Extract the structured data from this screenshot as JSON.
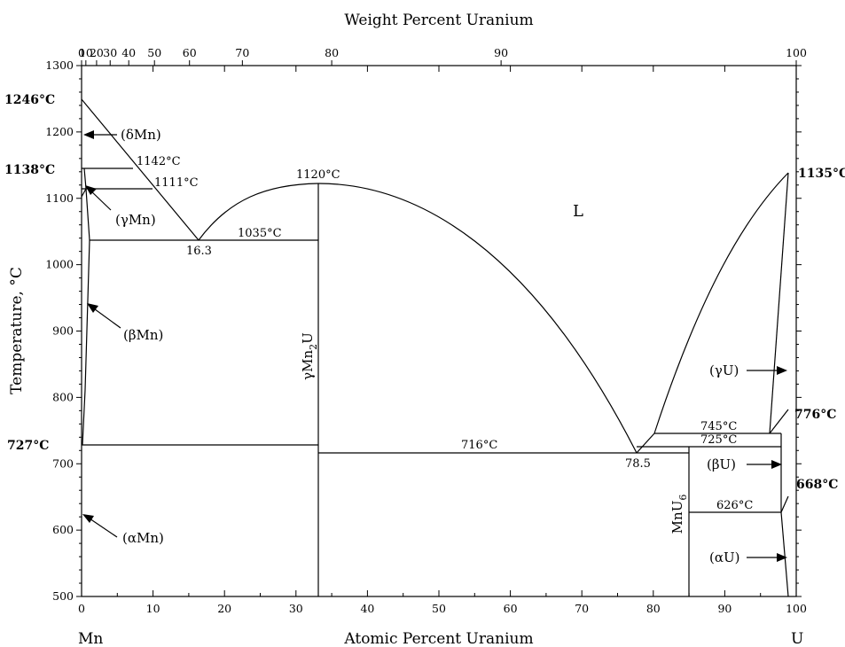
{
  "top_axis_title": "Weight Percent Uranium",
  "bottom_axis_title": "Atomic Percent Uranium",
  "y_axis_title": "Temperature, °C",
  "left_end_label": "Mn",
  "right_end_label": "U",
  "top_ticks": [
    "0",
    "10",
    "20",
    "30",
    "40",
    "50",
    "60",
    "70",
    "80",
    "90",
    "100"
  ],
  "top_tick_at": [
    0,
    0.6,
    2.1,
    4.0,
    6.6,
    10.2,
    15.1,
    22.5,
    35.0,
    58.7,
    100
  ],
  "bottom_ticks": [
    "0",
    "10",
    "20",
    "30",
    "40",
    "50",
    "60",
    "70",
    "80",
    "90",
    "100"
  ],
  "y_ticks": [
    "500",
    "600",
    "700",
    "800",
    "900",
    "1000",
    "1100",
    "1200",
    "1300"
  ],
  "temps": {
    "mn_liquidus": "1246°C",
    "mn_delta_gamma": "1138°C",
    "mn_beta_alpha": "727°C",
    "u_liquidus": "1135°C",
    "u_beta_gamma": "776°C",
    "u_alpha_beta": "668°C"
  },
  "invariants": {
    "t1142": "1142°C",
    "t1111": "1111°C",
    "t1035": "1035°C",
    "t1120": "1120°C",
    "t716": "716°C",
    "t745": "745°C",
    "t725": "725°C",
    "t626": "626°C",
    "c163": "16.3",
    "c785": "78.5"
  },
  "phases": {
    "liquid": "L",
    "delta_mn": "(δMn)",
    "gamma_mn": "(γMn)",
    "beta_mn": "(βMn)",
    "alpha_mn": "(αMn)",
    "gamma_u": "(γU)",
    "beta_u": "(βU)",
    "alpha_u": "(αU)",
    "mnu6": "MnU",
    "mnu6_sub": "6",
    "mn2u_pre": "γMn",
    "mn2u_sub": "2",
    "mn2u_post": "U"
  }
}
